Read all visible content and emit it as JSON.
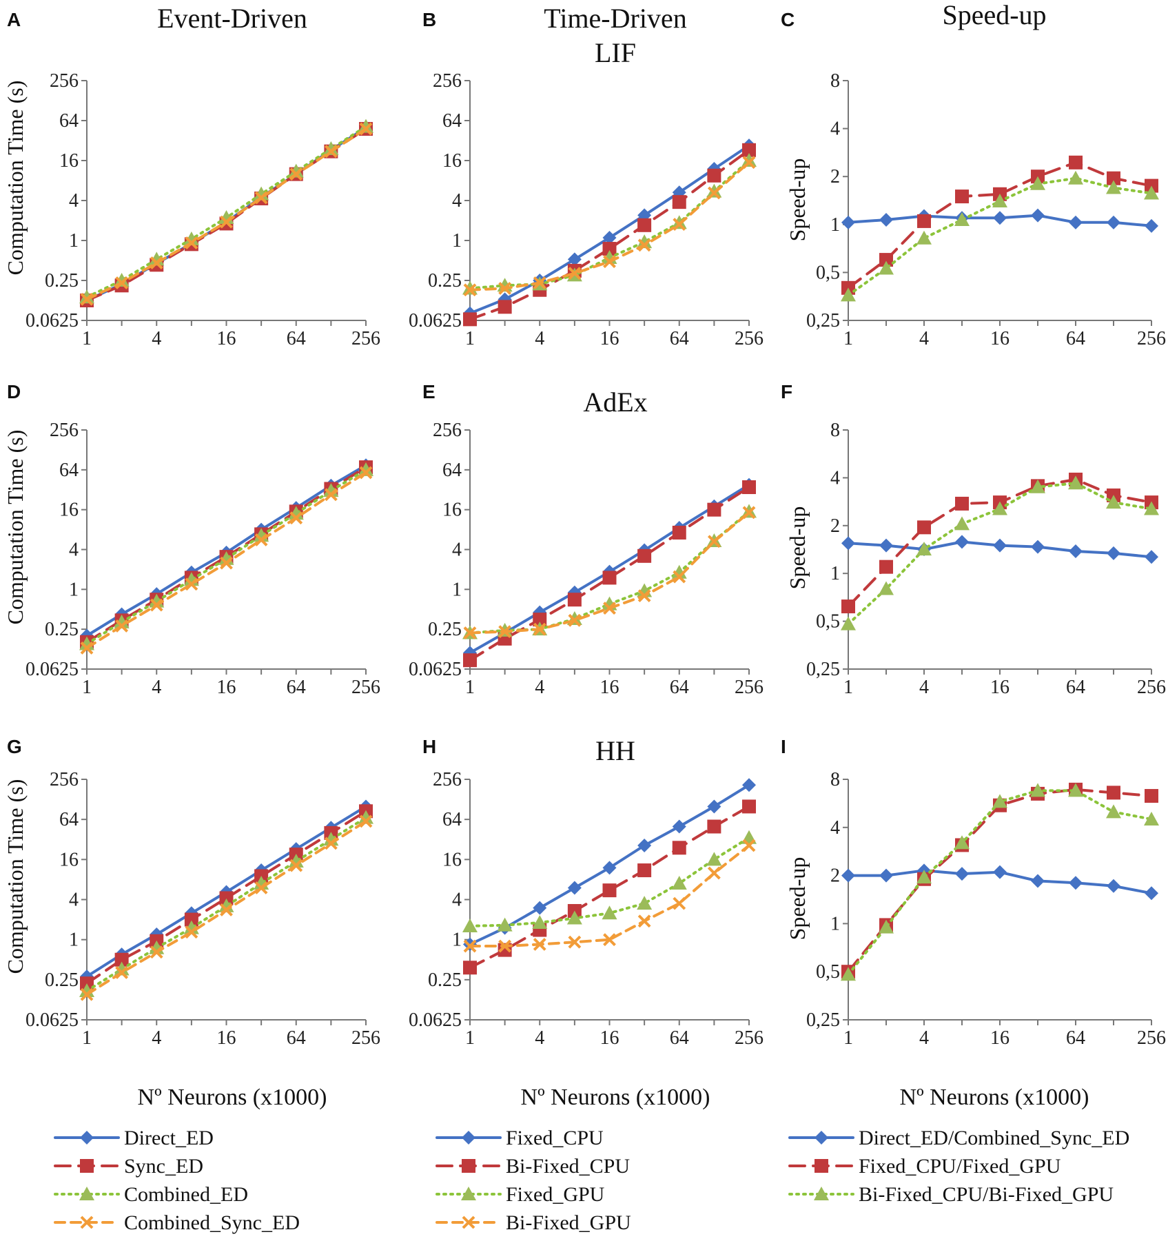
{
  "colors": {
    "blue": "#4472C4",
    "red": "#C0393B",
    "green": "#8CC43A",
    "green_marker": "#9BBB59",
    "orange": "#F29C38",
    "axis": "#777777"
  },
  "column_titles": [
    "Event-Driven",
    "Time-Driven",
    "Speed-up"
  ],
  "row_titles": [
    "LIF",
    "AdEx",
    "HH"
  ],
  "panel_letters": [
    "A",
    "B",
    "C",
    "D",
    "E",
    "F",
    "G",
    "H",
    "I"
  ],
  "ylabels": {
    "time": "Computation Time (s)",
    "speedup": "Speed-up"
  },
  "xlabels": [
    "Nº Neurons (x1000)",
    "Nº Neurons (x1000)",
    "Nº Neurons (x1000)"
  ],
  "x_tick_labels": [
    "1",
    "4",
    "16",
    "64",
    "256"
  ],
  "time_tick_labels": [
    "0.0625",
    "0.25",
    "1",
    "4",
    "16",
    "64",
    "256"
  ],
  "speed_tick_labels": [
    "0,25",
    "0,5",
    "1",
    "2",
    "4",
    "8"
  ],
  "legends": [
    [
      {
        "label": "Direct_ED",
        "style": "diamond"
      },
      {
        "label": "Sync_ED",
        "style": "square"
      },
      {
        "label": "Combined_ED",
        "style": "triangle"
      },
      {
        "label": "Combined_Sync_ED",
        "style": "cross"
      }
    ],
    [
      {
        "label": "Fixed_CPU",
        "style": "diamond"
      },
      {
        "label": "Bi-Fixed_CPU",
        "style": "square"
      },
      {
        "label": "Fixed_GPU",
        "style": "triangle"
      },
      {
        "label": "Bi-Fixed_GPU",
        "style": "cross"
      }
    ],
    [
      {
        "label": "Direct_ED/Combined_Sync_ED",
        "style": "diamond"
      },
      {
        "label": "Fixed_CPU/Fixed_GPU",
        "style": "square"
      },
      {
        "label": "Bi-Fixed_CPU/Bi-Fixed_GPU",
        "style": "triangle"
      }
    ]
  ],
  "chart_data": [
    {
      "id": "A",
      "type": "line",
      "scale": "time",
      "title": "Event-Driven",
      "subtitle": "",
      "ylabel": "Computation Time (s)",
      "x": [
        1,
        2,
        4,
        8,
        16,
        32,
        64,
        128,
        256
      ],
      "xlim": [
        1,
        256
      ],
      "ylim": [
        0.0625,
        256
      ],
      "series": [
        {
          "name": "Direct_ED",
          "style": "diamond",
          "values": [
            0.125,
            0.22,
            0.45,
            0.9,
            1.9,
            4.5,
            10,
            23,
            50
          ]
        },
        {
          "name": "Sync_ED",
          "style": "square",
          "values": [
            0.125,
            0.21,
            0.43,
            0.88,
            1.8,
            4.3,
            10,
            22,
            48
          ]
        },
        {
          "name": "Combined_ED",
          "style": "triangle",
          "values": [
            0.14,
            0.25,
            0.52,
            1.05,
            2.2,
            5,
            11,
            24,
            52
          ]
        },
        {
          "name": "Combined_Sync_ED",
          "style": "cross",
          "values": [
            0.13,
            0.23,
            0.46,
            0.92,
            1.9,
            4.4,
            10,
            22,
            48
          ]
        }
      ]
    },
    {
      "id": "B",
      "type": "line",
      "scale": "time",
      "title": "Time-Driven",
      "subtitle": "LIF",
      "ylabel": "",
      "x": [
        1,
        2,
        4,
        8,
        16,
        32,
        64,
        128,
        256
      ],
      "xlim": [
        1,
        256
      ],
      "ylim": [
        0.0625,
        256
      ],
      "series": [
        {
          "name": "Fixed_CPU",
          "style": "diamond",
          "values": [
            0.08,
            0.13,
            0.25,
            0.52,
            1.1,
            2.4,
            5.3,
            12,
            27
          ]
        },
        {
          "name": "Bi-Fixed_CPU",
          "style": "square",
          "values": [
            0.065,
            0.1,
            0.18,
            0.35,
            0.75,
            1.7,
            3.8,
            9.5,
            23
          ]
        },
        {
          "name": "Fixed_GPU",
          "style": "triangle",
          "values": [
            0.19,
            0.21,
            0.22,
            0.3,
            0.55,
            0.95,
            1.85,
            5.5,
            16
          ]
        },
        {
          "name": "Bi-Fixed_GPU",
          "style": "cross",
          "values": [
            0.18,
            0.19,
            0.23,
            0.32,
            0.48,
            0.85,
            1.75,
            5.2,
            15
          ]
        }
      ]
    },
    {
      "id": "C",
      "type": "line",
      "scale": "speedup",
      "title": "Speed-up",
      "subtitle": "",
      "ylabel": "Speed-up",
      "x": [
        1,
        2,
        4,
        8,
        16,
        32,
        64,
        128,
        256
      ],
      "xlim": [
        1,
        256
      ],
      "ylim": [
        0.25,
        8
      ],
      "series": [
        {
          "name": "Direct_ED/Combined_Sync_ED",
          "style": "diamond",
          "values": [
            1.03,
            1.07,
            1.13,
            1.1,
            1.1,
            1.14,
            1.03,
            1.03,
            0.98
          ]
        },
        {
          "name": "Fixed_CPU/Fixed_GPU",
          "style": "square",
          "values": [
            0.4,
            0.6,
            1.05,
            1.5,
            1.55,
            2.0,
            2.45,
            1.95,
            1.75
          ]
        },
        {
          "name": "Bi-Fixed_CPU/Bi-Fixed_GPU",
          "style": "triangle",
          "values": [
            0.36,
            0.53,
            0.82,
            1.07,
            1.4,
            1.8,
            1.95,
            1.7,
            1.57
          ]
        }
      ]
    },
    {
      "id": "D",
      "type": "line",
      "scale": "time",
      "title": "",
      "subtitle": "",
      "ylabel": "Computation Time (s)",
      "x": [
        1,
        2,
        4,
        8,
        16,
        32,
        64,
        128,
        256
      ],
      "xlim": [
        1,
        256
      ],
      "ylim": [
        0.0625,
        256
      ],
      "series": [
        {
          "name": "Direct_ED",
          "style": "diamond",
          "values": [
            0.2,
            0.42,
            0.85,
            1.8,
            3.6,
            8,
            17,
            37,
            75
          ]
        },
        {
          "name": "Sync_ED",
          "style": "square",
          "values": [
            0.16,
            0.34,
            0.7,
            1.5,
            3.1,
            6.8,
            15,
            33,
            70
          ]
        },
        {
          "name": "Combined_ED",
          "style": "triangle",
          "values": [
            0.15,
            0.32,
            0.66,
            1.4,
            2.9,
            6.5,
            14,
            31,
            64
          ]
        },
        {
          "name": "Combined_Sync_ED",
          "style": "cross",
          "values": [
            0.13,
            0.28,
            0.58,
            1.2,
            2.5,
            5.6,
            12,
            27,
            58
          ]
        }
      ]
    },
    {
      "id": "E",
      "type": "line",
      "scale": "time",
      "title": "",
      "subtitle": "AdEx",
      "ylabel": "",
      "x": [
        1,
        2,
        4,
        8,
        16,
        32,
        64,
        128,
        256
      ],
      "xlim": [
        1,
        256
      ],
      "ylim": [
        0.0625,
        256
      ],
      "series": [
        {
          "name": "Fixed_CPU",
          "style": "diamond",
          "values": [
            0.11,
            0.22,
            0.45,
            0.9,
            1.85,
            3.9,
            8.5,
            18,
            38
          ]
        },
        {
          "name": "Bi-Fixed_CPU",
          "style": "square",
          "values": [
            0.085,
            0.18,
            0.35,
            0.7,
            1.5,
            3.2,
            7.2,
            16,
            35
          ]
        },
        {
          "name": "Fixed_GPU",
          "style": "triangle",
          "values": [
            0.22,
            0.24,
            0.25,
            0.36,
            0.6,
            0.95,
            1.8,
            5.4,
            15
          ]
        },
        {
          "name": "Bi-Fixed_GPU",
          "style": "cross",
          "values": [
            0.22,
            0.23,
            0.25,
            0.34,
            0.52,
            0.8,
            1.55,
            5.3,
            14.5
          ]
        }
      ]
    },
    {
      "id": "F",
      "type": "line",
      "scale": "speedup",
      "title": "",
      "subtitle": "",
      "ylabel": "Speed-up",
      "x": [
        1,
        2,
        4,
        8,
        16,
        32,
        64,
        128,
        256
      ],
      "xlim": [
        1,
        256
      ],
      "ylim": [
        0.25,
        8
      ],
      "series": [
        {
          "name": "Direct_ED/Combined_Sync_ED",
          "style": "diamond",
          "values": [
            1.55,
            1.5,
            1.42,
            1.58,
            1.5,
            1.47,
            1.38,
            1.34,
            1.27
          ]
        },
        {
          "name": "Fixed_CPU/Fixed_GPU",
          "style": "square",
          "values": [
            0.62,
            1.1,
            1.95,
            2.75,
            2.8,
            3.55,
            3.9,
            3.1,
            2.8
          ]
        },
        {
          "name": "Bi-Fixed_CPU/Bi-Fixed_GPU",
          "style": "triangle",
          "values": [
            0.48,
            0.8,
            1.42,
            2.05,
            2.55,
            3.5,
            3.7,
            2.8,
            2.55
          ]
        }
      ]
    },
    {
      "id": "G",
      "type": "line",
      "scale": "time",
      "title": "",
      "subtitle": "",
      "ylabel": "Computation Time (s)",
      "x": [
        1,
        2,
        4,
        8,
        16,
        32,
        64,
        128,
        256
      ],
      "xlim": [
        1,
        256
      ],
      "ylim": [
        0.0625,
        256
      ],
      "series": [
        {
          "name": "Direct_ED",
          "style": "diamond",
          "values": [
            0.28,
            0.6,
            1.2,
            2.5,
            5.2,
            11,
            23,
            48,
            100
          ]
        },
        {
          "name": "Sync_ED",
          "style": "square",
          "values": [
            0.22,
            0.5,
            0.95,
            2.0,
            4.2,
            9,
            19,
            40,
            85
          ]
        },
        {
          "name": "Combined_ED",
          "style": "triangle",
          "values": [
            0.17,
            0.36,
            0.75,
            1.5,
            3.2,
            7,
            15,
            32,
            68
          ]
        },
        {
          "name": "Combined_Sync_ED",
          "style": "cross",
          "values": [
            0.15,
            0.32,
            0.65,
            1.3,
            2.8,
            6,
            13,
            28,
            60
          ]
        }
      ]
    },
    {
      "id": "H",
      "type": "line",
      "scale": "time",
      "title": "",
      "subtitle": "HH",
      "ylabel": "",
      "x": [
        1,
        2,
        4,
        8,
        16,
        32,
        64,
        128,
        256
      ],
      "xlim": [
        1,
        256
      ],
      "ylim": [
        0.0625,
        256
      ],
      "series": [
        {
          "name": "Fixed_CPU",
          "style": "diamond",
          "values": [
            0.85,
            1.5,
            3.0,
            6.0,
            12,
            26,
            50,
            100,
            210
          ]
        },
        {
          "name": "Bi-Fixed_CPU",
          "style": "square",
          "values": [
            0.38,
            0.7,
            1.4,
            2.7,
            5.5,
            11,
            24,
            50,
            100
          ]
        },
        {
          "name": "Fixed_GPU",
          "style": "triangle",
          "values": [
            1.6,
            1.65,
            1.8,
            2.1,
            2.5,
            3.5,
            7.0,
            16,
            34
          ]
        },
        {
          "name": "Bi-Fixed_GPU",
          "style": "cross",
          "values": [
            0.8,
            0.8,
            0.85,
            0.92,
            1.0,
            1.9,
            3.5,
            10,
            26
          ]
        }
      ]
    },
    {
      "id": "I",
      "type": "line",
      "scale": "speedup",
      "title": "",
      "subtitle": "",
      "ylabel": "Speed-up",
      "x": [
        1,
        2,
        4,
        8,
        16,
        32,
        64,
        128,
        256
      ],
      "xlim": [
        1,
        256
      ],
      "ylim": [
        0.25,
        8
      ],
      "series": [
        {
          "name": "Direct_ED/Combined_Sync_ED",
          "style": "diamond",
          "values": [
            2.0,
            2.0,
            2.15,
            2.05,
            2.1,
            1.85,
            1.8,
            1.72,
            1.55
          ]
        },
        {
          "name": "Fixed_CPU/Fixed_GPU",
          "style": "square",
          "values": [
            0.5,
            0.98,
            1.9,
            3.1,
            5.5,
            6.5,
            6.9,
            6.6,
            6.3
          ]
        },
        {
          "name": "Bi-Fixed_CPU/Bi-Fixed_GPU",
          "style": "triangle",
          "values": [
            0.48,
            0.95,
            1.95,
            3.2,
            5.8,
            6.8,
            6.8,
            5.0,
            4.5
          ]
        }
      ]
    }
  ]
}
